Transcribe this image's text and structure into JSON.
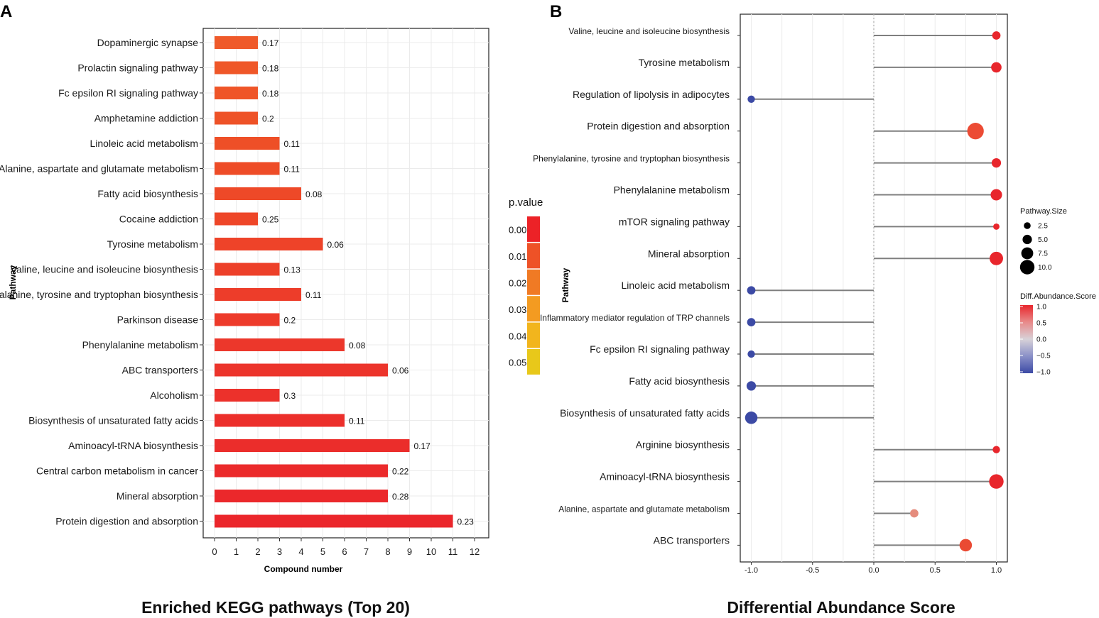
{
  "panels": {
    "a_label": "A",
    "b_label": "B"
  },
  "chart_data": [
    {
      "type": "bar",
      "orientation": "horizontal",
      "title": "Enriched KEGG pathways (Top 20)",
      "xlabel": "Compound number",
      "ylabel": "Pathway",
      "xlim": [
        0,
        12
      ],
      "xticks": [
        "0",
        "1",
        "2",
        "3",
        "4",
        "5",
        "6",
        "7",
        "8",
        "9",
        "10",
        "11",
        "12"
      ],
      "grid": true,
      "categories": [
        "Dopaminergic synapse",
        "Prolactin signaling pathway",
        "Fc epsilon RI signaling pathway",
        "Amphetamine addiction",
        "Linoleic acid metabolism",
        "Alanine, aspartate and glutamate metabolism",
        "Fatty acid biosynthesis",
        "Cocaine addiction",
        "Tyrosine metabolism",
        "Valine, leucine and isoleucine biosynthesis",
        "Phenylalanine, tyrosine and tryptophan biosynthesis",
        "Parkinson disease",
        "Phenylalanine metabolism",
        "ABC transporters",
        "Alcoholism",
        "Biosynthesis of unsaturated fatty acids",
        "Aminoacyl-tRNA biosynthesis",
        "Central carbon metabolism in cancer",
        "Mineral absorption",
        "Protein digestion and absorption"
      ],
      "values": [
        2,
        2,
        2,
        2,
        3,
        3,
        4,
        2,
        5,
        3,
        4,
        3,
        6,
        8,
        3,
        6,
        9,
        8,
        8,
        11
      ],
      "data_labels": [
        "0.17",
        "0.18",
        "0.18",
        "0.2",
        "0.11",
        "0.11",
        "0.08",
        "0.25",
        "0.06",
        "0.13",
        "0.11",
        "0.2",
        "0.08",
        "0.06",
        "0.3",
        "0.11",
        "0.17",
        "0.22",
        "0.28",
        "0.23"
      ],
      "bar_colors": [
        "#ef5a2a",
        "#ef5728",
        "#ef5528",
        "#ee5227",
        "#ee4f27",
        "#ee4c27",
        "#ee4928",
        "#ee4628",
        "#ee4329",
        "#ed4029",
        "#ed3d2a",
        "#ed3a2a",
        "#ec372b",
        "#ec342b",
        "#ec312b",
        "#ec2f2b",
        "#eb2d2b",
        "#eb2a2b",
        "#eb282b",
        "#eb262b"
      ],
      "legend": {
        "title": "p.value",
        "position": "right",
        "labels": [
          "0.00",
          "0.01",
          "0.02",
          "0.03",
          "0.04",
          "0.05"
        ],
        "colors": [
          "#ec2227",
          "#ee5227",
          "#f07a24",
          "#f39b21",
          "#f2b51d",
          "#e8c81a"
        ]
      }
    },
    {
      "type": "lollipop",
      "title": "Differential Abundance Score",
      "xlabel": "",
      "ylabel": "Pathway",
      "xlim": [
        -1.1,
        1.1
      ],
      "xticks": [
        "-1.0",
        "-0.5",
        "0.0",
        "0.5",
        "1.0"
      ],
      "xtick_values": [
        -1.0,
        -0.5,
        0.0,
        0.5,
        1.0
      ],
      "grid": true,
      "categories": [
        "Valine, leucine and isoleucine biosynthesis",
        "Tyrosine metabolism",
        "Regulation of lipolysis in adipocytes",
        "Protein digestion and absorption",
        "Phenylalanine, tyrosine and tryptophan biosynthesis",
        "Phenylalanine metabolism",
        "mTOR signaling pathway",
        "Mineral absorption",
        "Linoleic acid metabolism",
        "Inflammatory mediator regulation of TRP channels",
        "Fc epsilon RI signaling pathway",
        "Fatty acid biosynthesis",
        "Biosynthesis of unsaturated fatty acids",
        "Arginine biosynthesis",
        "Aminoacyl-tRNA biosynthesis",
        "Alanine, aspartate and glutamate metabolism",
        "ABC transporters"
      ],
      "values": [
        1.0,
        1.0,
        -1.0,
        0.83,
        1.0,
        1.0,
        1.0,
        1.0,
        -1.0,
        -1.0,
        -1.0,
        -1.0,
        -1.0,
        1.0,
        1.0,
        0.33,
        0.75
      ],
      "pathway_size": [
        4,
        6,
        3,
        12,
        5,
        7,
        2,
        9,
        4,
        4,
        3,
        5,
        8,
        3,
        10,
        4,
        8
      ],
      "point_colors": [
        "#e8262c",
        "#e8262c",
        "#3c4aa5",
        "#ec4b34",
        "#e8262c",
        "#e8262c",
        "#e8262c",
        "#e8262c",
        "#3c4aa5",
        "#3c4aa5",
        "#3c4aa5",
        "#3c4aa5",
        "#3c4aa5",
        "#e8262c",
        "#e8262c",
        "#e58c7d",
        "#ea4a33"
      ],
      "size_legend": {
        "title": "Pathway.Size",
        "position": "top-right",
        "labels": [
          "2.5",
          "5.0",
          "7.5",
          "10.0"
        ],
        "values": [
          2.5,
          5.0,
          7.5,
          10.0
        ]
      },
      "color_legend": {
        "title": "Diff.Abundance.Score",
        "position": "right",
        "labels": [
          "1.0",
          "0.5",
          "0.0",
          "−0.5",
          "−1.0"
        ],
        "colors": [
          "#e8262c",
          "#e88a8a",
          "#d8d2d8",
          "#8a90c8",
          "#3c4aa5"
        ]
      }
    }
  ]
}
